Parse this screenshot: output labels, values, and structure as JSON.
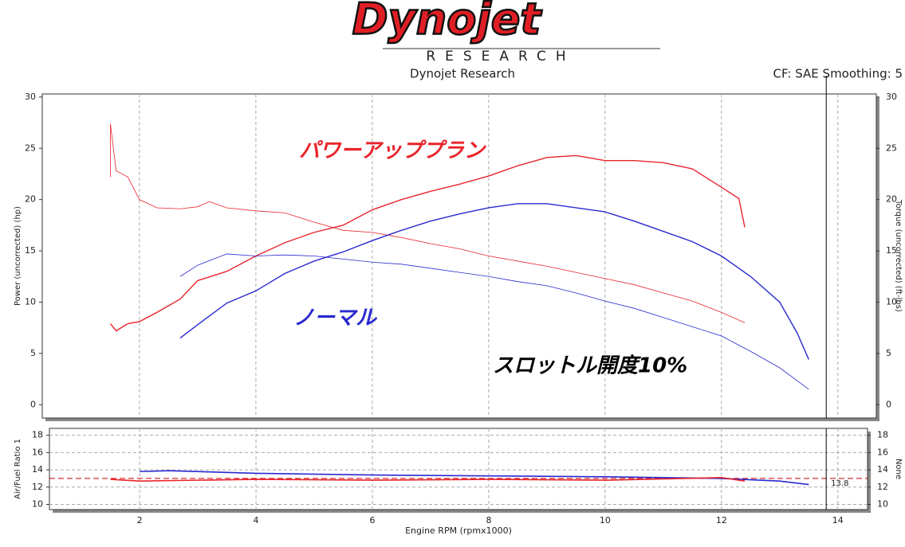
{
  "header": {
    "logo": "Dynojet",
    "logo_sub": "RESEARCH",
    "title": "Dynojet Research",
    "settings": "CF: SAE Smoothing: 5"
  },
  "chart_data": [
    {
      "type": "line",
      "ylabel": "Power (uncorrected) (hp)",
      "y2label": "Torque (uncorrected) (ft-lbs)",
      "annotation": "スロットル開度10%",
      "xlim": [
        0.33,
        14.66
      ],
      "xticks": [
        2,
        4,
        6,
        8,
        10,
        12,
        14
      ],
      "ylim": [
        -1.3,
        30.3
      ],
      "yticks": [
        0,
        5,
        10,
        15,
        20,
        25,
        30
      ],
      "y2lim": [
        -1.3,
        30.3
      ],
      "y2ticks": [
        0,
        5,
        10,
        15,
        20,
        25,
        30
      ],
      "xgrid": true,
      "ygrid": false,
      "cursor": 13.8,
      "series": [
        {
          "name": "パワーアッププラン",
          "color": "#e8252b",
          "x": [
            1.5,
            1.6,
            1.8,
            2.0,
            2.3,
            2.7,
            3.0,
            3.5,
            4.0,
            4.5,
            5.0,
            5.5,
            6.0,
            6.5,
            7.0,
            7.5,
            8.0,
            8.5,
            9.0,
            9.5,
            10.0,
            10.5,
            11.0,
            11.5,
            12.0,
            12.3,
            12.4
          ],
          "values": [
            7.9,
            7.2,
            7.9,
            8.1,
            9.0,
            10.3,
            12.1,
            13.0,
            14.5,
            15.8,
            16.8,
            17.5,
            19.0,
            20.0,
            20.8,
            21.5,
            22.3,
            23.3,
            24.1,
            24.3,
            23.8,
            23.8,
            23.6,
            23.0,
            21.2,
            20.1,
            17.3
          ],
          "torque_x": [
            1.5,
            1.5,
            1.6,
            1.8,
            2.0,
            2.3,
            2.7,
            3.0,
            3.2,
            3.5,
            4.0,
            4.5,
            5.0,
            5.5,
            6.0,
            6.5,
            7.0,
            7.5,
            8.0,
            8.5,
            9.0,
            9.5,
            10.0,
            10.5,
            11.0,
            11.5,
            12.0,
            12.4
          ],
          "torque": [
            22.2,
            27.4,
            22.8,
            22.2,
            20.0,
            19.2,
            19.1,
            19.3,
            19.8,
            19.2,
            18.9,
            18.7,
            17.8,
            17.0,
            16.8,
            16.3,
            15.7,
            15.2,
            14.5,
            14.0,
            13.5,
            12.9,
            12.3,
            11.7,
            10.9,
            10.1,
            9.0,
            8.0
          ]
        },
        {
          "name": "ノーマル",
          "color": "#2a2ad0",
          "x": [
            2.7,
            3.0,
            3.5,
            4.0,
            4.5,
            5.0,
            5.5,
            6.0,
            6.5,
            7.0,
            7.5,
            8.0,
            8.5,
            9.0,
            9.5,
            10.0,
            10.5,
            11.0,
            11.5,
            12.0,
            12.5,
            13.0,
            13.3,
            13.5
          ],
          "values": [
            6.5,
            7.8,
            9.9,
            11.1,
            12.8,
            14.0,
            14.9,
            16.0,
            17.0,
            17.9,
            18.6,
            19.2,
            19.6,
            19.6,
            19.2,
            18.8,
            17.9,
            16.9,
            15.9,
            14.5,
            12.5,
            10.0,
            7.0,
            4.4
          ],
          "torque_x": [
            2.7,
            3.0,
            3.5,
            4.0,
            4.5,
            5.0,
            5.5,
            6.0,
            6.5,
            7.0,
            7.5,
            8.0,
            8.5,
            9.0,
            9.5,
            10.0,
            10.5,
            11.0,
            11.5,
            12.0,
            12.5,
            13.0,
            13.5
          ],
          "torque": [
            12.5,
            13.6,
            14.7,
            14.5,
            14.6,
            14.5,
            14.2,
            13.9,
            13.7,
            13.3,
            12.9,
            12.5,
            12.0,
            11.6,
            10.9,
            10.1,
            9.4,
            8.5,
            7.6,
            6.7,
            5.2,
            3.6,
            1.5
          ]
        }
      ]
    },
    {
      "type": "line",
      "ylabel": "Air/Fuel Ratio 1",
      "y2label": "None",
      "xlabel": "Engine RPM (rpmx1000)",
      "xlim": [
        0.45,
        14.51
      ],
      "xticks": [
        2,
        4,
        6,
        8,
        10,
        12,
        14
      ],
      "ylim": [
        9.4,
        18.8
      ],
      "yticks": [
        10,
        12,
        14,
        16,
        18
      ],
      "y2lim": [
        9.4,
        18.8
      ],
      "y2ticks": [
        10,
        12,
        14,
        16,
        18
      ],
      "xgrid": true,
      "ygrid": true,
      "cursor": 13.8,
      "ref_line": 13,
      "series": [
        {
          "color": "#2a2ad0",
          "x": [
            2.0,
            2.5,
            4.0,
            6.0,
            8.0,
            10.0,
            12.0,
            13.0,
            13.5
          ],
          "values": [
            13.8,
            13.9,
            13.6,
            13.4,
            13.3,
            13.2,
            13.0,
            12.7,
            12.3
          ]
        },
        {
          "color": "#e8252b",
          "x": [
            1.5,
            2.0,
            4.0,
            6.0,
            8.0,
            10.0,
            12.0,
            12.4
          ],
          "values": [
            12.9,
            12.7,
            12.9,
            12.8,
            12.9,
            12.8,
            13.1,
            12.7
          ]
        }
      ]
    }
  ]
}
